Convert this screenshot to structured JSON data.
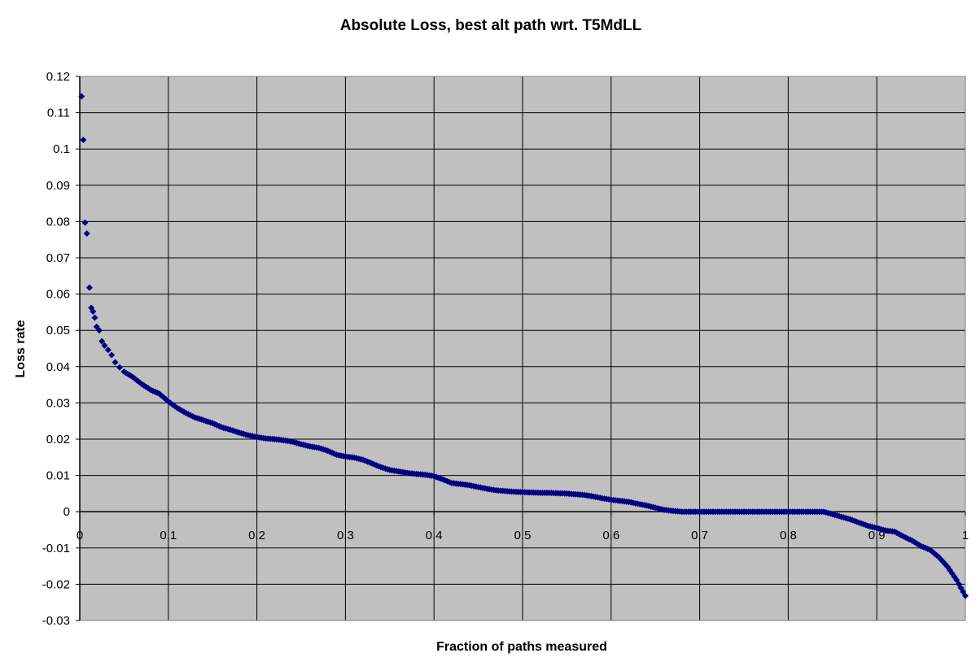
{
  "chart_data": {
    "type": "scatter",
    "title": "Absolute Loss, best alt path wrt. T5MdLL",
    "xlabel": "Fraction of paths measured",
    "ylabel": "Loss rate",
    "xlim": [
      0,
      1
    ],
    "ylim": [
      -0.03,
      0.12
    ],
    "xticks": [
      "0",
      "0.1",
      "0.2",
      "0.3",
      "0.4",
      "0.5",
      "0.6",
      "0.7",
      "0.8",
      "0.9",
      "1"
    ],
    "yticks": [
      "0.12",
      "0.11",
      "0.1",
      "0.09",
      "0.08",
      "0.07",
      "0.06",
      "0.05",
      "0.04",
      "0.03",
      "0.02",
      "0.01",
      "0",
      "-0.01",
      "-0.02",
      "-0.03"
    ],
    "grid": true,
    "legend": "none",
    "colors": {
      "plot_bg": "#c0c0c0",
      "marker": "#000080",
      "grid": "#000000"
    },
    "series": [
      {
        "marker": "diamond",
        "x": [
          0.002,
          0.004,
          0.006,
          0.008,
          0.011,
          0.013,
          0.015,
          0.017,
          0.019,
          0.022,
          0.025,
          0.028,
          0.032,
          0.036,
          0.04,
          0.045,
          0.05,
          0.06,
          0.07,
          0.08,
          0.09,
          0.1,
          0.11,
          0.12,
          0.13,
          0.14,
          0.15,
          0.16,
          0.17,
          0.18,
          0.19,
          0.2,
          0.21,
          0.22,
          0.23,
          0.24,
          0.25,
          0.26,
          0.27,
          0.28,
          0.29,
          0.3,
          0.31,
          0.32,
          0.33,
          0.34,
          0.35,
          0.36,
          0.37,
          0.38,
          0.39,
          0.4,
          0.41,
          0.42,
          0.43,
          0.44,
          0.45,
          0.46,
          0.47,
          0.48,
          0.49,
          0.5,
          0.51,
          0.52,
          0.53,
          0.54,
          0.55,
          0.56,
          0.57,
          0.58,
          0.59,
          0.6,
          0.61,
          0.62,
          0.63,
          0.64,
          0.65,
          0.66,
          0.67,
          0.68,
          0.69,
          0.7,
          0.71,
          0.72,
          0.73,
          0.74,
          0.75,
          0.76,
          0.77,
          0.78,
          0.79,
          0.8,
          0.81,
          0.82,
          0.83,
          0.84,
          0.85,
          0.86,
          0.87,
          0.88,
          0.89,
          0.9,
          0.91,
          0.92,
          0.93,
          0.94,
          0.95,
          0.96,
          0.97,
          0.98,
          0.99,
          1.0
        ],
        "y": [
          0.1145,
          0.1025,
          0.0797,
          0.0767,
          0.0618,
          0.0562,
          0.0552,
          0.0535,
          0.051,
          0.05,
          0.047,
          0.0458,
          0.0446,
          0.0432,
          0.0412,
          0.0398,
          0.0386,
          0.0371,
          0.0352,
          0.0336,
          0.0325,
          0.0304,
          0.0286,
          0.0272,
          0.026,
          0.0252,
          0.0244,
          0.0233,
          0.0226,
          0.0218,
          0.0211,
          0.0206,
          0.0202,
          0.02,
          0.0197,
          0.0193,
          0.0186,
          0.018,
          0.0176,
          0.0168,
          0.0157,
          0.0152,
          0.0149,
          0.0143,
          0.0133,
          0.0123,
          0.0115,
          0.0111,
          0.0107,
          0.0104,
          0.0102,
          0.0098,
          0.0089,
          0.0079,
          0.0076,
          0.0073,
          0.0068,
          0.0063,
          0.0059,
          0.0057,
          0.0055,
          0.0054,
          0.0053,
          0.0052,
          0.0052,
          0.0051,
          0.005,
          0.0048,
          0.0046,
          0.0042,
          0.0037,
          0.0033,
          0.003,
          0.0027,
          0.0022,
          0.0017,
          0.0011,
          0.0005,
          0.0002,
          0.0,
          0.0,
          0.0,
          0.0,
          0.0,
          0.0,
          0.0,
          0.0,
          0.0,
          0.0,
          0.0,
          0.0,
          0.0,
          0.0,
          0.0,
          0.0,
          0.0,
          -0.0007,
          -0.0014,
          -0.0021,
          -0.003,
          -0.0039,
          -0.0045,
          -0.0052,
          -0.0055,
          -0.0068,
          -0.008,
          -0.0095,
          -0.0105,
          -0.0125,
          -0.0152,
          -0.0188,
          -0.0232
        ]
      }
    ]
  }
}
